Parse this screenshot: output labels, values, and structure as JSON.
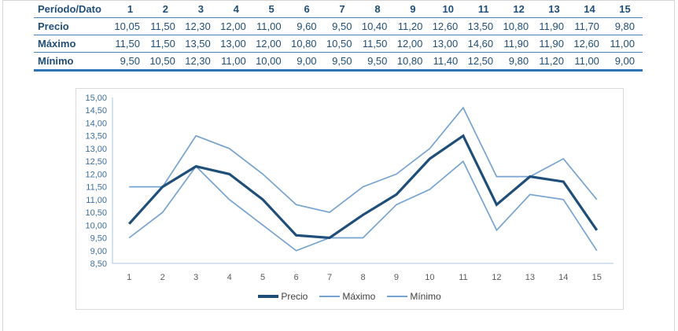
{
  "window": {
    "background": "#ffffff",
    "frame_color": "#d5d5d5"
  },
  "table": {
    "header_label": "Período/Dato",
    "periods": [
      "1",
      "2",
      "3",
      "4",
      "5",
      "6",
      "7",
      "8",
      "9",
      "10",
      "11",
      "12",
      "13",
      "14",
      "15"
    ],
    "rows": [
      {
        "label": "Precio",
        "values": [
          "10,05",
          "11,50",
          "12,30",
          "12,00",
          "11,00",
          "9,60",
          "9,50",
          "10,40",
          "11,20",
          "12,60",
          "13,50",
          "10,80",
          "11,90",
          "11,70",
          "9,80"
        ]
      },
      {
        "label": "Máximo",
        "values": [
          "11,50",
          "11,50",
          "13,50",
          "13,00",
          "12,00",
          "10,80",
          "10,50",
          "11,50",
          "12,00",
          "13,00",
          "14,60",
          "11,90",
          "11,90",
          "12,60",
          "11,00"
        ]
      },
      {
        "label": "Mínimo",
        "values": [
          "9,50",
          "10,50",
          "12,30",
          "11,00",
          "10,00",
          "9,00",
          "9,50",
          "9,50",
          "10,80",
          "11,40",
          "12,50",
          "9,80",
          "11,20",
          "11,00",
          "9,00"
        ]
      }
    ],
    "colors": {
      "text": "#1F4E79",
      "row_border": "#4384BE",
      "bottom_border": "#2E75B6"
    }
  },
  "chart_data": {
    "type": "line",
    "title": "",
    "xlabel": "",
    "ylabel": "",
    "x": [
      "1",
      "2",
      "3",
      "4",
      "5",
      "6",
      "7",
      "8",
      "9",
      "10",
      "11",
      "12",
      "13",
      "14",
      "15"
    ],
    "series": [
      {
        "name": "Precio",
        "values": [
          10.05,
          11.5,
          12.3,
          12.0,
          11.0,
          9.6,
          9.5,
          10.4,
          11.2,
          12.6,
          13.5,
          10.8,
          11.9,
          11.7,
          9.8
        ],
        "color": "#1F4E79",
        "stroke_width": 3.2
      },
      {
        "name": "Máximo",
        "values": [
          11.5,
          11.5,
          13.5,
          13.0,
          12.0,
          10.8,
          10.5,
          11.5,
          12.0,
          13.0,
          14.6,
          11.9,
          11.9,
          12.6,
          11.0
        ],
        "color": "#76A3CF",
        "stroke_width": 1.7
      },
      {
        "name": "Mínimo",
        "values": [
          9.5,
          10.5,
          12.3,
          11.0,
          10.0,
          9.0,
          9.5,
          9.5,
          10.8,
          11.4,
          12.5,
          9.8,
          11.2,
          11.0,
          9.0
        ],
        "color": "#76A3CF",
        "stroke_width": 1.7
      }
    ],
    "ylim": [
      8.5,
      15.0
    ],
    "ytick_values": [
      15.0,
      14.5,
      14.0,
      13.5,
      13.0,
      12.5,
      12.0,
      11.5,
      11.0,
      10.5,
      10.0,
      9.5,
      9.0,
      8.5
    ],
    "ytick_labels": [
      "15,00",
      "14,50",
      "14,00",
      "13,50",
      "13,00",
      "12,50",
      "12,00",
      "11,50",
      "11,00",
      "10,50",
      "10,00",
      "9,50",
      "9,00",
      "8,50"
    ],
    "grid": false,
    "legend_position": "bottom",
    "colors": {
      "axis_line": "#A9C3DC",
      "ytick_text": "#3D6E9E",
      "xtick_text": "#595959",
      "legend_text": "#404040",
      "plot_border": "#d9d9d9"
    }
  }
}
